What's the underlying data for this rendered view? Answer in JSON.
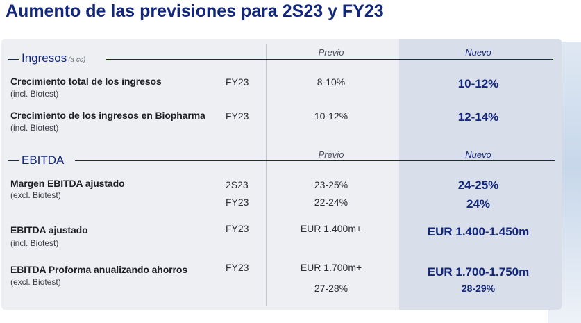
{
  "title": "Aumento de las previsiones para 2S23 y FY23",
  "sections": [
    {
      "name": "Ingresos",
      "qualifier": "(a cc)",
      "col_prev": "Previo",
      "col_new": "Nuevo",
      "rows": [
        {
          "label": "Crecimiento total de los ingresos",
          "note": "(incl. Biotest)",
          "periods": [
            "FY23"
          ],
          "prev": [
            "8-10%"
          ],
          "new": [
            "10-12%"
          ]
        },
        {
          "label": "Crecimiento de los ingresos en Biopharma",
          "note": "(incl. Biotest)",
          "periods": [
            "FY23"
          ],
          "prev": [
            "10-12%"
          ],
          "new": [
            "12-14%"
          ]
        }
      ]
    },
    {
      "name": "EBITDA",
      "qualifier": "",
      "col_prev": "Previo",
      "col_new": "Nuevo",
      "rows": [
        {
          "label": "Margen EBITDA ajustado",
          "note": "(excl. Biotest)",
          "periods": [
            "2S23",
            "FY23"
          ],
          "prev": [
            "23-25%",
            "22-24%"
          ],
          "new": [
            "24-25%",
            "24%"
          ]
        },
        {
          "label": "EBITDA ajustado",
          "note": "(incl. Biotest)",
          "periods": [
            "FY23"
          ],
          "prev": [
            "EUR 1.400m+"
          ],
          "new": [
            "EUR 1.400-1.450m"
          ]
        },
        {
          "label": "EBITDA Proforma anualizando ahorros",
          "note": "(excl. Biotest)",
          "periods": [
            "FY23"
          ],
          "prev": [
            "EUR 1.700m+",
            "27-28%"
          ],
          "new": [
            "EUR 1.700-1.750m",
            "28-29%"
          ]
        }
      ]
    }
  ],
  "colors": {
    "brand": "#13277a",
    "panel": "#eeeff3",
    "new_column": "#d8deea"
  }
}
